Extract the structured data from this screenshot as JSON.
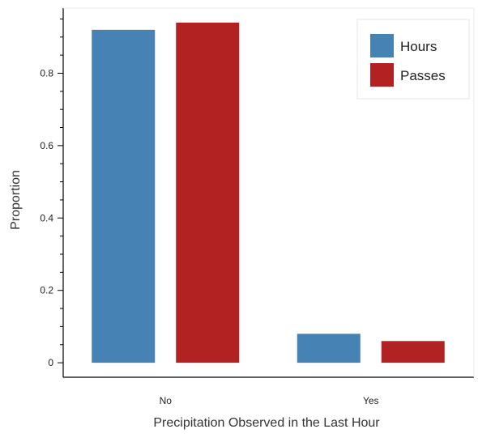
{
  "chart_data": {
    "type": "bar",
    "categories": [
      "No",
      "Yes"
    ],
    "series": [
      {
        "name": "Hours",
        "values": [
          0.92,
          0.08
        ],
        "color": "#4682b4"
      },
      {
        "name": "Passes",
        "values": [
          0.94,
          0.06
        ],
        "color": "#b22222"
      }
    ],
    "xlabel": "Precipitation Observed in the Last Hour",
    "ylabel": "Proportion",
    "ylim": [
      -0.04,
      0.98
    ],
    "yticks": [
      0,
      0.2,
      0.4,
      0.6,
      0.8
    ],
    "ytick_labels": [
      "0",
      "0.2",
      "0.4",
      "0.6",
      "0.8"
    ],
    "legend_position": "top-right",
    "grid": false
  }
}
